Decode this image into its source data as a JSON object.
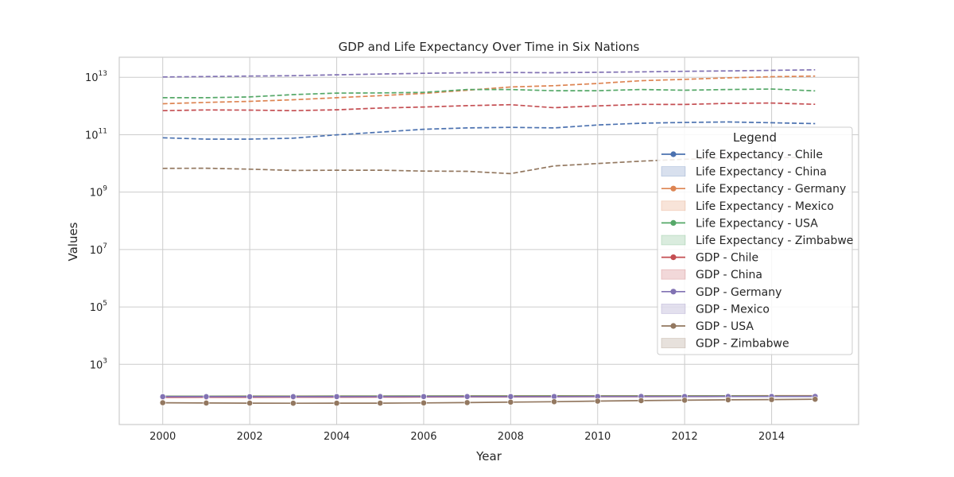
{
  "chart_data": {
    "type": "line",
    "title": "GDP and Life Expectancy Over Time in Six Nations",
    "xlabel": "Year",
    "ylabel": "Values",
    "yscale": "log",
    "xlim": [
      1999.0,
      2016.0
    ],
    "ylim": [
      8,
      50000000000000.0
    ],
    "x_ticks": [
      2000,
      2002,
      2004,
      2006,
      2008,
      2010,
      2012,
      2014
    ],
    "y_ticks": [
      {
        "value": 1000,
        "base": "10",
        "exp": "3"
      },
      {
        "value": 100000,
        "base": "10",
        "exp": "5"
      },
      {
        "value": 10000000,
        "base": "10",
        "exp": "7"
      },
      {
        "value": 1000000000,
        "base": "10",
        "exp": "9"
      },
      {
        "value": 100000000000,
        "base": "10",
        "exp": "11"
      },
      {
        "value": 10000000000000,
        "base": "10",
        "exp": "13"
      }
    ],
    "grid": true,
    "legend_placement": "right",
    "legend_title": "Legend",
    "legend": [
      {
        "label": "Life Expectancy - Chile",
        "color": "#4c72b0",
        "style": "line"
      },
      {
        "label": "Life Expectancy - China",
        "color": "#4c72b0",
        "style": "band"
      },
      {
        "label": "Life Expectancy - Germany",
        "color": "#dd8452",
        "style": "line"
      },
      {
        "label": "Life Expectancy - Mexico",
        "color": "#dd8452",
        "style": "band"
      },
      {
        "label": "Life Expectancy - USA",
        "color": "#55a868",
        "style": "line"
      },
      {
        "label": "Life Expectancy - Zimbabwe",
        "color": "#55a868",
        "style": "band"
      },
      {
        "label": "GDP - Chile",
        "color": "#c44e52",
        "style": "line"
      },
      {
        "label": "GDP - China",
        "color": "#c44e52",
        "style": "band"
      },
      {
        "label": "GDP - Germany",
        "color": "#8172b3",
        "style": "line"
      },
      {
        "label": "GDP - Mexico",
        "color": "#8172b3",
        "style": "band"
      },
      {
        "label": "GDP - USA",
        "color": "#937860",
        "style": "line"
      },
      {
        "label": "GDP - Zimbabwe",
        "color": "#937860",
        "style": "band"
      }
    ],
    "x": [
      2000,
      2001,
      2002,
      2003,
      2004,
      2005,
      2006,
      2007,
      2008,
      2009,
      2010,
      2011,
      2012,
      2013,
      2014,
      2015
    ],
    "series": [
      {
        "color": "#4c72b0",
        "dashed": true,
        "markers": false,
        "values": [
          78000000000.0,
          70000000000.0,
          70000000000.0,
          76000000000.0,
          99000000000.0,
          123000000000.0,
          155000000000.0,
          173000000000.0,
          180000000000.0,
          172000000000.0,
          218000000000.0,
          252000000000.0,
          267000000000.0,
          278000000000.0,
          261000000000.0,
          243000000000.0
        ]
      },
      {
        "color": "#dd8452",
        "dashed": true,
        "markers": false,
        "values": [
          1200000000000.0,
          1340000000000.0,
          1450000000000.0,
          1650000000000.0,
          1950000000000.0,
          2290000000000.0,
          2750000000000.0,
          3550000000000.0,
          4600000000000.0,
          5100000000000.0,
          6100000000000.0,
          7600000000000.0,
          8500000000000.0,
          9600000000000.0,
          10500000000000.0,
          11000000000000.0
        ]
      },
      {
        "color": "#55a868",
        "dashed": true,
        "markers": false,
        "values": [
          1950000000000.0,
          1950000000000.0,
          2080000000000.0,
          2500000000000.0,
          2810000000000.0,
          2850000000000.0,
          2990000000000.0,
          3750000000000.0,
          3750000000000.0,
          3420000000000.0,
          3420000000000.0,
          3760000000000.0,
          3540000000000.0,
          3750000000000.0,
          3890000000000.0,
          3360000000000.0
        ]
      },
      {
        "color": "#c44e52",
        "dashed": true,
        "markers": false,
        "values": [
          690000000000.0,
          730000000000.0,
          720000000000.0,
          690000000000.0,
          740000000000.0,
          850000000000.0,
          920000000000.0,
          1030000000000.0,
          1110000000000.0,
          870000000000.0,
          1010000000000.0,
          1140000000000.0,
          1130000000000.0,
          1240000000000.0,
          1270000000000.0,
          1150000000000.0
        ]
      },
      {
        "color": "#8172b3",
        "dashed": true,
        "markers": false,
        "values": [
          10300000000000.0,
          10600000000000.0,
          11000000000000.0,
          11400000000000.0,
          12200000000000.0,
          13000000000000.0,
          13800000000000.0,
          14400000000000.0,
          14700000000000.0,
          14400000000000.0,
          15000000000000.0,
          15500000000000.0,
          16200000000000.0,
          16700000000000.0,
          17500000000000.0,
          18200000000000.0
        ]
      },
      {
        "color": "#937860",
        "dashed": true,
        "markers": false,
        "values": [
          6700000000.0,
          6800000000.0,
          6300000000.0,
          5700000000.0,
          5800000000.0,
          5800000000.0,
          5400000000.0,
          5300000000.0,
          4400000000.0,
          8200000000.0,
          9900000000.0,
          12000000000.0,
          14000000000.0,
          15000000000.0,
          16000000000.0,
          16000000000.0
        ]
      },
      {
        "color": "#4c72b0",
        "dashed": false,
        "markers": true,
        "values": [
          77.3,
          77.5,
          77.7,
          77.8,
          78.0,
          78.2,
          78.5,
          78.8,
          79.0,
          79.1,
          79.3,
          79.5,
          79.7,
          79.9,
          80.1,
          80.3
        ]
      },
      {
        "color": "#dd8452",
        "dashed": false,
        "markers": true,
        "values": [
          78.0,
          78.2,
          78.4,
          78.6,
          78.8,
          79.0,
          79.2,
          79.4,
          79.6,
          79.8,
          80.0,
          80.2,
          80.4,
          80.6,
          80.8,
          81.0
        ]
      },
      {
        "color": "#55a868",
        "dashed": false,
        "markers": true,
        "values": [
          76.8,
          76.9,
          77.0,
          77.1,
          77.5,
          77.7,
          77.9,
          78.1,
          78.2,
          78.4,
          78.5,
          78.6,
          78.7,
          78.8,
          78.8,
          78.9
        ]
      },
      {
        "color": "#c44e52",
        "dashed": false,
        "markers": true,
        "values": [
          71.0,
          71.3,
          71.6,
          72.0,
          72.4,
          72.8,
          73.2,
          73.6,
          74.0,
          74.4,
          74.8,
          75.2,
          75.6,
          76.0,
          76.4,
          76.8
        ]
      },
      {
        "color": "#8172b3",
        "dashed": false,
        "markers": true,
        "values": [
          74.8,
          74.9,
          75.0,
          75.0,
          75.1,
          75.3,
          75.4,
          75.6,
          75.6,
          75.7,
          75.8,
          75.9,
          76.0,
          76.1,
          76.2,
          76.4
        ]
      },
      {
        "color": "#937860",
        "dashed": false,
        "markers": true,
        "values": [
          46.0,
          45.0,
          44.5,
          44.3,
          44.4,
          44.6,
          45.4,
          46.6,
          48.2,
          50.0,
          52.4,
          54.4,
          56.3,
          58.0,
          59.2,
          60.7
        ]
      }
    ]
  }
}
